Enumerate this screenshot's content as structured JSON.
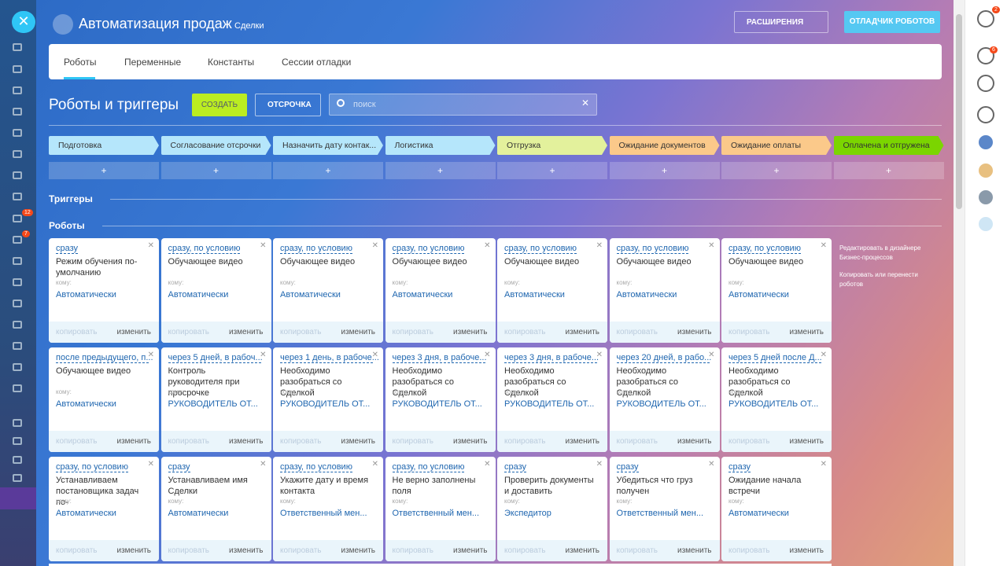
{
  "header": {
    "title": "Автоматизация продаж",
    "subtitle": "Сделки",
    "extensions_button": "РАСШИРЕНИЯ",
    "debugger_button": "ОТЛАДЧИК РОБОТОВ"
  },
  "tabs": [
    "Роботы",
    "Переменные",
    "Константы",
    "Сессии отладки"
  ],
  "toolbar": {
    "heading": "Роботы и триггеры",
    "create_button": "СОЗДАТЬ",
    "delay_button": "ОТСРОЧКА",
    "search_placeholder": "поиск"
  },
  "stages": [
    {
      "name": "Подготовка",
      "color": "#b5e6fb"
    },
    {
      "name": "Согласование отсрочки",
      "color": "#b5e6fb"
    },
    {
      "name": "Назначить дату контак...",
      "color": "#b5e6fb"
    },
    {
      "name": "Логистика",
      "color": "#b5e6fb"
    },
    {
      "name": "Отгрузка",
      "color": "#e3f19c"
    },
    {
      "name": "Ожидание документов",
      "color": "#fbc98a"
    },
    {
      "name": "Ожидание оплаты",
      "color": "#fbc98a"
    },
    {
      "name": "Оплачена и отгружена",
      "color": "#7bd500"
    }
  ],
  "add_label": "+",
  "sections": {
    "triggers": "Триггеры",
    "robots": "Роботы"
  },
  "labels": {
    "to": "кому:",
    "copy": "копировать",
    "edit": "изменить"
  },
  "robot_rows": [
    [
      {
        "when": "сразу",
        "name": "Режим обучения по-умолчанию",
        "responsible": "Автоматически"
      },
      {
        "when": "сразу, по условию",
        "name": "Обучающее видео",
        "responsible": "Автоматически"
      },
      {
        "when": "сразу, по условию",
        "name": "Обучающее видео",
        "responsible": "Автоматически"
      },
      {
        "when": "сразу, по условию",
        "name": "Обучающее видео",
        "responsible": "Автоматически"
      },
      {
        "when": "сразу, по условию",
        "name": "Обучающее видео",
        "responsible": "Автоматически"
      },
      {
        "when": "сразу, по условию",
        "name": "Обучающее видео",
        "responsible": "Автоматически"
      },
      {
        "when": "сразу, по условию",
        "name": "Обучающее видео",
        "responsible": "Автоматически"
      }
    ],
    [
      {
        "when": "после предыдущего, п...",
        "name": "Обучающее видео",
        "responsible": "Автоматически"
      },
      {
        "when": "через 5 дней, в рабоч...",
        "name": "Контроль руководителя при просрочке",
        "responsible": "РУКОВОДИТЕЛЬ ОТ..."
      },
      {
        "when": "через 1 день, в рабоче...",
        "name": "Необходимо разобраться со Сделкой",
        "responsible": "РУКОВОДИТЕЛЬ ОТ..."
      },
      {
        "when": "через 3 дня, в рабоче...",
        "name": "Необходимо разобраться со Сделкой",
        "responsible": "РУКОВОДИТЕЛЬ ОТ..."
      },
      {
        "when": "через 3 дня, в рабоче...",
        "name": "Необходимо разобраться со Сделкой",
        "responsible": "РУКОВОДИТЕЛЬ ОТ..."
      },
      {
        "when": "через 20 дней, в рабо...",
        "name": "Необходимо разобраться со Сделкой",
        "responsible": "РУКОВОДИТЕЛЬ ОТ..."
      },
      {
        "when": "через 5 дней после Д...",
        "name": "Необходимо разобраться со Сделкой",
        "responsible": "РУКОВОДИТЕЛЬ ОТ..."
      }
    ],
    [
      {
        "when": "сразу, по условию",
        "name": "Устанавливаем постановщика задач по-",
        "responsible": "Автоматически"
      },
      {
        "when": "сразу",
        "name": "Устанавливаем имя Сделки",
        "responsible": "Автоматически"
      },
      {
        "when": "сразу, по условию",
        "name": "Укажите дату и время контакта",
        "responsible": "Ответственный мен..."
      },
      {
        "when": "сразу, по условию",
        "name": "Не верно заполнены поля",
        "responsible": "Ответственный мен..."
      },
      {
        "when": "сразу",
        "name": "Проверить документы и доставить",
        "responsible": "Экспедитор"
      },
      {
        "when": "сразу",
        "name": "Убедиться что груз получен",
        "responsible": "Ответственный мен..."
      },
      {
        "when": "сразу",
        "name": "Ожидание начала встречи",
        "responsible": "Автоматически"
      }
    ]
  ],
  "side_links": [
    "Редактировать в дизайнере Бизнес-процессов",
    "Копировать или перенести роботов"
  ],
  "left_badges": [
    "12",
    "7"
  ],
  "right_badges": [
    "2",
    "6"
  ]
}
